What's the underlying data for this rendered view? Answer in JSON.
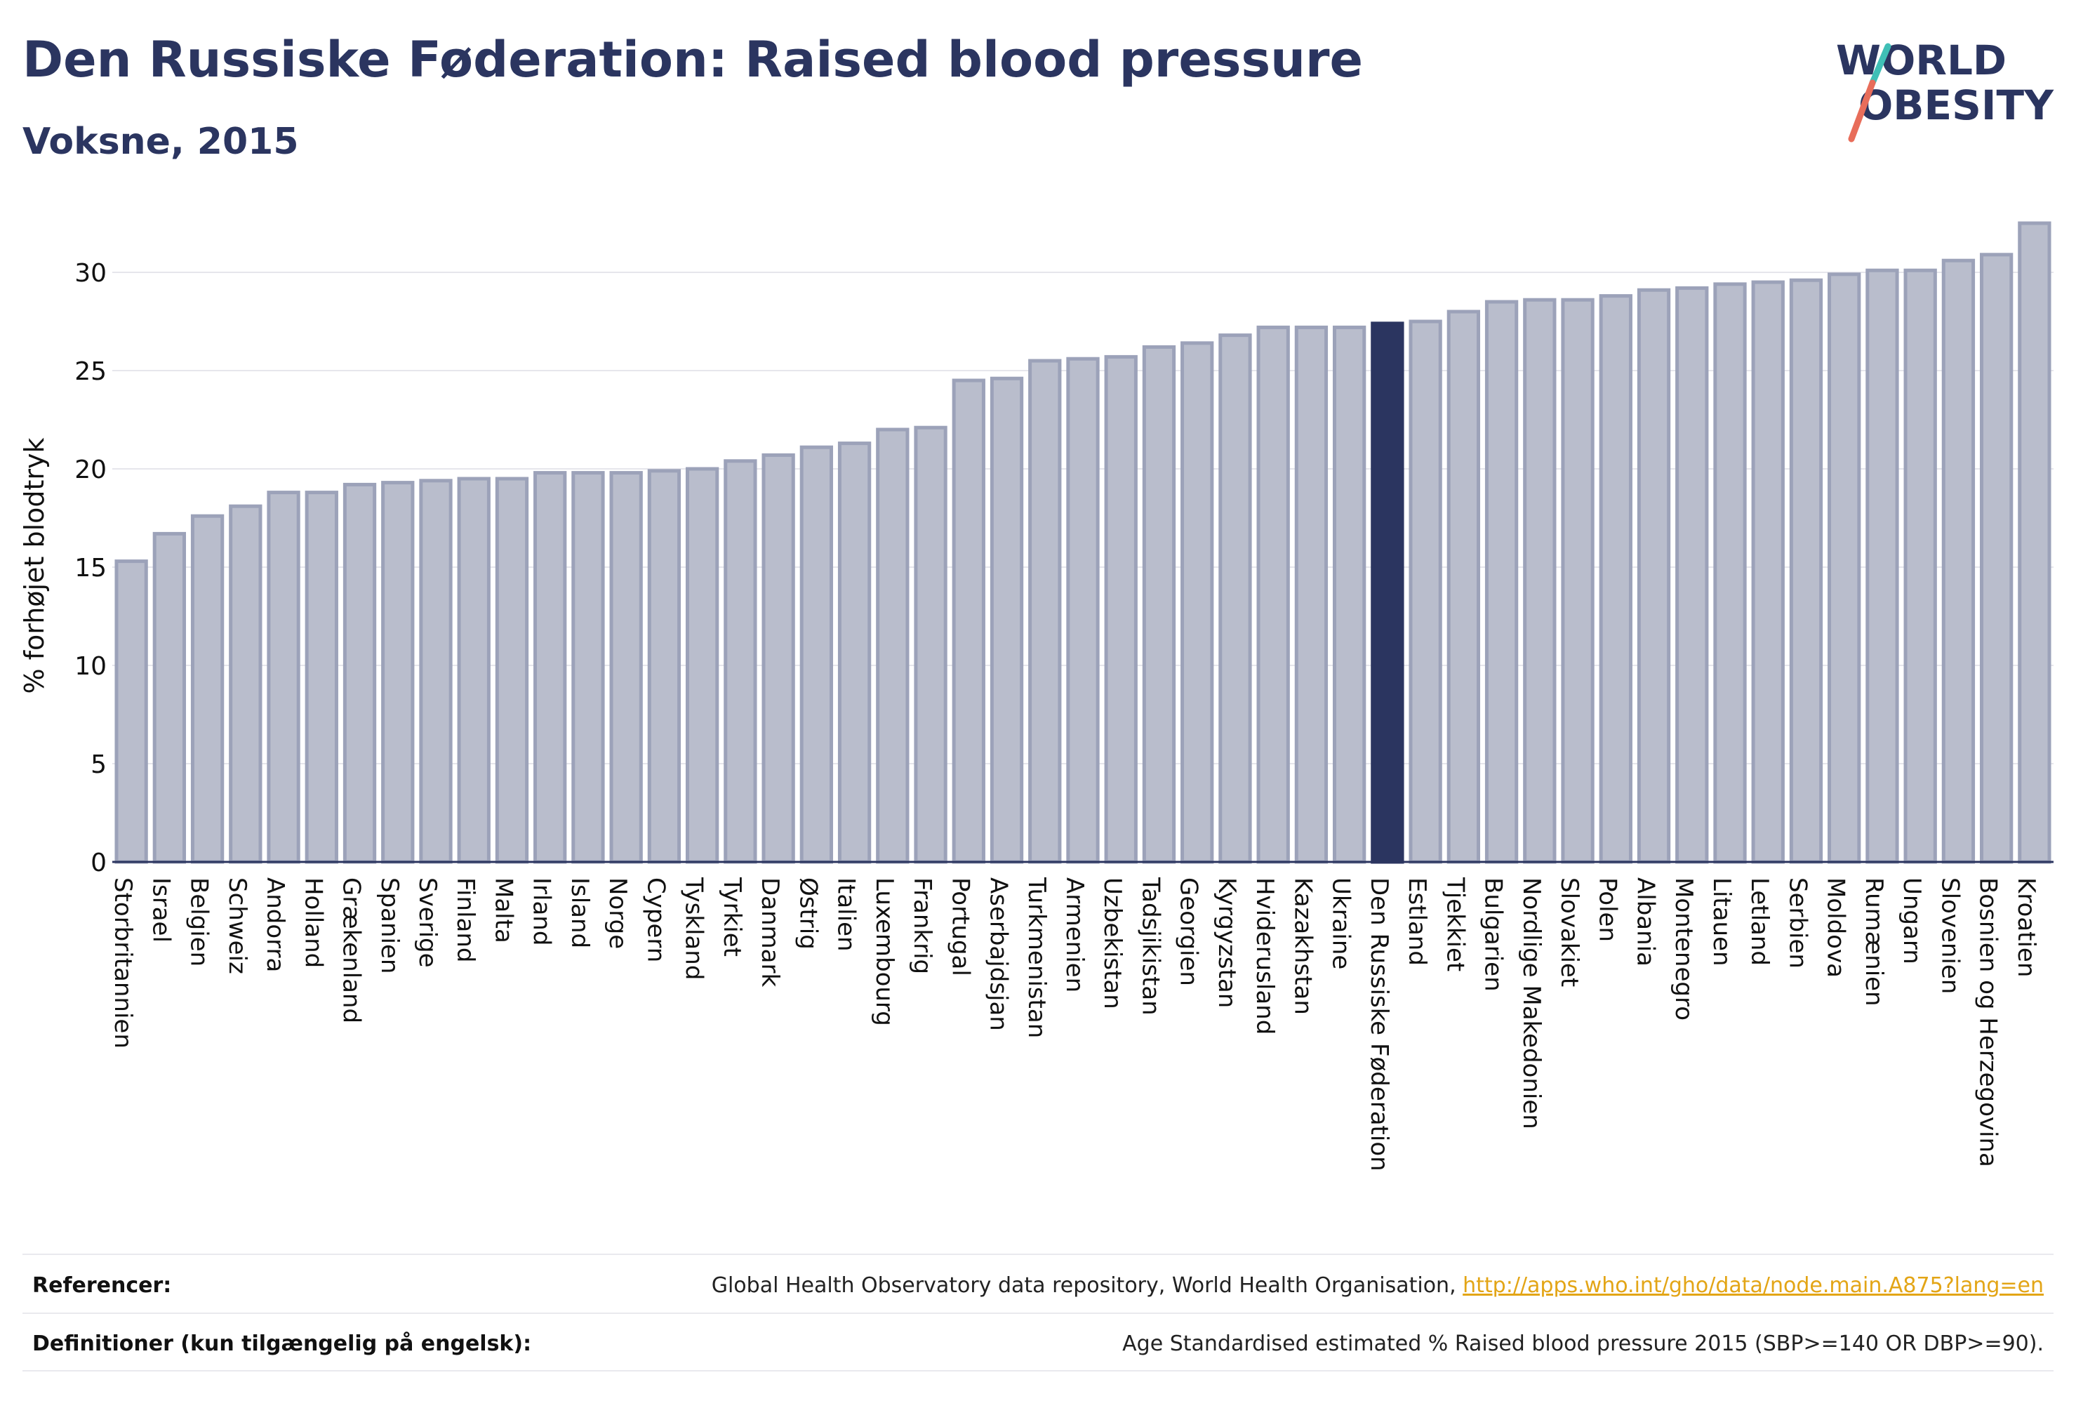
{
  "header": {
    "title": "Den Russiske Føderation: Raised blood pressure",
    "subtitle": "Voksne, 2015"
  },
  "logo": {
    "line1": "WORLD",
    "line2": "OBESITY"
  },
  "colors": {
    "bar_fill": "#b9bdcc",
    "bar_stroke": "#9ca2b9",
    "highlight_fill": "#2b3560",
    "text": "#2b3560",
    "link": "#e3a516",
    "logo_teal": "#3fbfb6",
    "logo_coral": "#e86d5a"
  },
  "chart_data": {
    "type": "bar",
    "title": "Den Russiske Føderation: Raised blood pressure",
    "subtitle": "Voksne, 2015",
    "xlabel": "",
    "ylabel": "% forhøjet blodtryk",
    "ylim": [
      0,
      33
    ],
    "yticks": [
      0,
      5,
      10,
      15,
      20,
      25,
      30
    ],
    "grid": true,
    "highlight": "Den Russiske Føderation",
    "categories": [
      "Storbritannien",
      "Israel",
      "Belgien",
      "Schweiz",
      "Andorra",
      "Holland",
      "Grækenland",
      "Spanien",
      "Sverige",
      "Finland",
      "Malta",
      "Irland",
      "Island",
      "Norge",
      "Cypern",
      "Tyskland",
      "Tyrkiet",
      "Danmark",
      "Østrig",
      "Italien",
      "Luxembourg",
      "Frankrig",
      "Portugal",
      "Aserbajdsjan",
      "Turkmenistan",
      "Armenien",
      "Uzbekistan",
      "Tadsjikistan",
      "Georgien",
      "Kyrgyzstan",
      "Hviderusland",
      "Kazakhstan",
      "Ukraine",
      "Den Russiske Føderation",
      "Estland",
      "Tjekkiet",
      "Bulgarien",
      "Nordlige Makedonien",
      "Slovakiet",
      "Polen",
      "Albania",
      "Montenegro",
      "Litauen",
      "Letland",
      "Serbien",
      "Moldova",
      "Rumænien",
      "Ungarn",
      "Slovenien",
      "Bosnien og Herzegovina",
      "Kroatien"
    ],
    "values": [
      15.3,
      16.7,
      17.6,
      18.1,
      18.8,
      18.8,
      19.2,
      19.3,
      19.4,
      19.5,
      19.5,
      19.8,
      19.8,
      19.8,
      19.9,
      20.0,
      20.4,
      20.7,
      21.1,
      21.3,
      22.0,
      22.1,
      24.5,
      24.6,
      25.5,
      25.6,
      25.7,
      26.2,
      26.4,
      26.8,
      27.2,
      27.2,
      27.2,
      27.4,
      27.5,
      28.0,
      28.5,
      28.6,
      28.6,
      28.8,
      29.1,
      29.2,
      29.4,
      29.5,
      29.6,
      29.9,
      30.1,
      30.1,
      30.6,
      30.9,
      32.5
    ]
  },
  "footer": {
    "references_label": "Referencer:",
    "references_text": "Global Health Observatory data repository, World Health Organisation, ",
    "references_link": "http://apps.who.int/gho/data/node.main.A875?lang=en",
    "definitions_label": "Definitioner (kun tilgængelig på engelsk):",
    "definitions_text": "Age Standardised estimated % Raised blood pressure 2015 (SBP>=140 OR DBP>=90)."
  }
}
